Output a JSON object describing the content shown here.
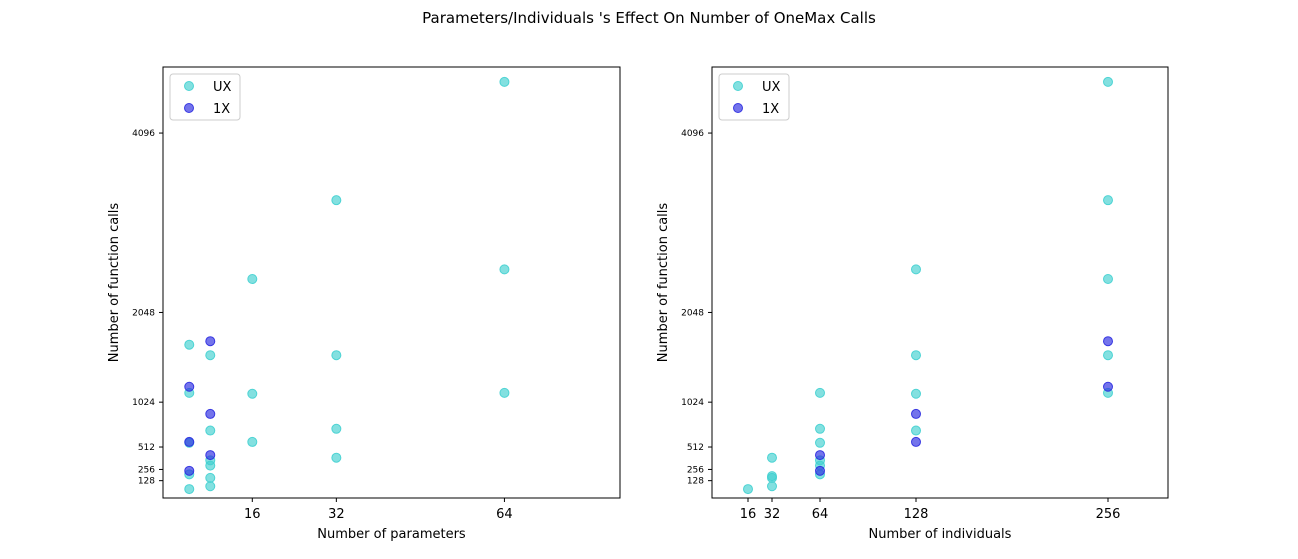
{
  "figure": {
    "title": "Parameters/Individuals 's Effect On Number of OneMax Calls"
  },
  "chart_data": [
    {
      "type": "scatter",
      "title": "",
      "xlabel": "Number of parameters",
      "ylabel": "Number of function calls",
      "xlim": [
        -1,
        86
      ],
      "ylim": [
        -70,
        4850
      ],
      "xticks": [
        16,
        32,
        64
      ],
      "yticks": [
        128,
        256,
        512,
        1024,
        2048,
        4096
      ],
      "legend": "upper-left",
      "series": [
        {
          "name": "UX",
          "color": "#40d0d0",
          "points": [
            [
              4,
              32
            ],
            [
              4,
              200
            ],
            [
              4,
              560
            ],
            [
              4,
              1130
            ],
            [
              4,
              1680
            ],
            [
              8,
              64
            ],
            [
              8,
              160
            ],
            [
              8,
              300
            ],
            [
              8,
              360
            ],
            [
              8,
              700
            ],
            [
              8,
              1560
            ],
            [
              16,
              570
            ],
            [
              16,
              1120
            ],
            [
              16,
              2430
            ],
            [
              32,
              390
            ],
            [
              32,
              720
            ],
            [
              32,
              1560
            ],
            [
              32,
              3330
            ],
            [
              64,
              1130
            ],
            [
              64,
              2540
            ],
            [
              64,
              4680
            ]
          ]
        },
        {
          "name": "1X",
          "color": "#2a2ae0",
          "points": [
            [
              4,
              240
            ],
            [
              4,
              570
            ],
            [
              4,
              1200
            ],
            [
              8,
              420
            ],
            [
              8,
              890
            ],
            [
              8,
              1720
            ]
          ]
        }
      ]
    },
    {
      "type": "scatter",
      "title": "",
      "xlabel": "Number of individuals",
      "ylabel": "Number of function calls",
      "xlim": [
        -8,
        296
      ],
      "ylim": [
        -70,
        4850
      ],
      "xticks": [
        16,
        32,
        64,
        128,
        256
      ],
      "yticks": [
        128,
        256,
        512,
        1024,
        2048,
        4096
      ],
      "legend": "upper-left",
      "series": [
        {
          "name": "UX",
          "color": "#40d0d0",
          "points": [
            [
              16,
              32
            ],
            [
              32,
              64
            ],
            [
              32,
              160
            ],
            [
              32,
              180
            ],
            [
              32,
              390
            ],
            [
              64,
              200
            ],
            [
              64,
              300
            ],
            [
              64,
              360
            ],
            [
              64,
              560
            ],
            [
              64,
              720
            ],
            [
              64,
              1130
            ],
            [
              128,
              700
            ],
            [
              128,
              1120
            ],
            [
              128,
              1560
            ],
            [
              128,
              2540
            ],
            [
              256,
              1130
            ],
            [
              256,
              1560
            ],
            [
              256,
              2430
            ],
            [
              256,
              3330
            ],
            [
              256,
              4680
            ]
          ]
        },
        {
          "name": "1X",
          "color": "#2a2ae0",
          "points": [
            [
              64,
              240
            ],
            [
              64,
              420
            ],
            [
              128,
              570
            ],
            [
              128,
              890
            ],
            [
              256,
              1200
            ],
            [
              256,
              1720
            ]
          ]
        }
      ]
    }
  ]
}
